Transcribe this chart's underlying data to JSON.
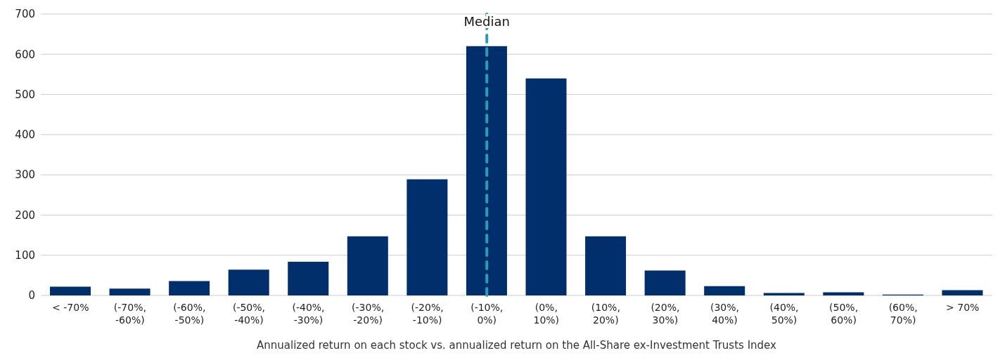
{
  "chart_data": {
    "type": "bar",
    "xlabel": "Annualized return on each stock vs. annualized return on the All-Share ex-Investment Trusts Index",
    "categories": [
      "< -70%",
      "(-70%, -60%)",
      "(-60%, -50%)",
      "(-50%, -40%)",
      "(-40%, -30%)",
      "(-30%, -20%)",
      "(-20%, -10%)",
      "(-10%, 0%)",
      "(0%, 10%)",
      "(10%, 20%)",
      "(20%, 30%)",
      "(30%, 40%)",
      "(40%, 50%)",
      "(50%, 60%)",
      "(60%, 70%)",
      "> 70%"
    ],
    "values": [
      22,
      17,
      36,
      64,
      84,
      147,
      289,
      620,
      540,
      147,
      62,
      23,
      6,
      8,
      2,
      13
    ],
    "color": "#002f6c",
    "ylim": [
      0,
      700
    ],
    "yticks": [
      0,
      100,
      200,
      300,
      400,
      500,
      600,
      700
    ],
    "grid": "y",
    "ref_lines": [
      {
        "axis": "x",
        "value": "(-10%, 0%)",
        "label": "Median",
        "color": "#2a9cb8",
        "line_style": "dashed"
      }
    ]
  }
}
